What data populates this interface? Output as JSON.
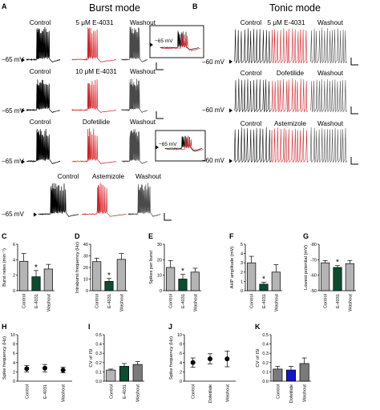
{
  "panels": {
    "A": {
      "letter": "A",
      "title": "Burst mode",
      "rows": [
        {
          "conditions": [
            "Control",
            "5 μM E-4031",
            "Washout"
          ],
          "vlabel": "−65 mV"
        },
        {
          "conditions": [
            "Control",
            "10 μM E-4031",
            "Washout"
          ],
          "vlabel": "−65 mV"
        },
        {
          "conditions": [
            "Control",
            "Dofetilide",
            "Washout"
          ],
          "vlabel": "−65 mV"
        },
        {
          "conditions": [
            "Control",
            "Astemizole",
            "Washout"
          ],
          "vlabel": "−65 mV"
        }
      ],
      "inset_labels": [
        "−65 mV",
        "−65 mV"
      ]
    },
    "B": {
      "letter": "B",
      "title": "Tonic mode",
      "rows": [
        {
          "conditions": [
            "Control",
            "5 μM E-4031",
            "Washout"
          ],
          "vlabel": "−60 mV"
        },
        {
          "conditions": [
            "Control",
            "Dofetilide",
            "Washout"
          ],
          "vlabel": "−60 mV"
        },
        {
          "conditions": [
            "Control",
            "Astemizole",
            "Washout"
          ],
          "vlabel": "−60 mV"
        }
      ]
    }
  },
  "colors": {
    "control": "#000000",
    "drug_red": "#d21e23",
    "washout": "#4a4a4a",
    "bar_gray": "#b4b4b4",
    "bar_green": "#0b4d2f",
    "bar_blue": "#1414d2",
    "bar_darkgray": "#7a7a7a"
  },
  "chart_data": [
    {
      "letter": "C",
      "type": "bar",
      "ylabel": "Burst rates (min⁻¹)",
      "ylim": [
        0,
        6
      ],
      "yticks": [
        0,
        2,
        4,
        6
      ],
      "categories": [
        "Control",
        "E-4031",
        "Washout"
      ],
      "values": [
        3.8,
        1.8,
        2.8
      ],
      "errors": [
        1.0,
        0.8,
        0.6
      ],
      "colors": [
        "#b4b4b4",
        "#0b4d2f",
        "#b4b4b4"
      ],
      "star": 1
    },
    {
      "letter": "D",
      "type": "bar",
      "ylabel": "Intraburst frequency (Hz)",
      "ylim": [
        0,
        40
      ],
      "yticks": [
        0,
        10,
        20,
        30,
        40
      ],
      "categories": [
        "Control",
        "E-4031",
        "Washout"
      ],
      "values": [
        25,
        8,
        27
      ],
      "errors": [
        3,
        2.5,
        5
      ],
      "colors": [
        "#b4b4b4",
        "#0b4d2f",
        "#b4b4b4"
      ],
      "star": 1
    },
    {
      "letter": "E",
      "type": "bar",
      "ylabel": "Spikes per burst",
      "ylim": [
        0,
        30
      ],
      "yticks": [
        0,
        10,
        20,
        30
      ],
      "categories": [
        "Control",
        "E-4031",
        "Washout"
      ],
      "values": [
        15,
        7.5,
        12
      ],
      "errors": [
        4.5,
        3,
        2.5
      ],
      "colors": [
        "#b4b4b4",
        "#0b4d2f",
        "#b4b4b4"
      ],
      "star": 1
    },
    {
      "letter": "F",
      "type": "bar",
      "ylabel": "AHP amplitude (mV)",
      "ylim": [
        0,
        5
      ],
      "yticks": [
        0,
        1,
        2,
        3,
        4,
        5
      ],
      "categories": [
        "Control",
        "E-4031",
        "Washout"
      ],
      "values": [
        3.0,
        0.7,
        2.0
      ],
      "errors": [
        0.7,
        0.2,
        0.8
      ],
      "colors": [
        "#b4b4b4",
        "#0b4d2f",
        "#b4b4b4"
      ],
      "star": 1
    },
    {
      "letter": "G",
      "type": "bar",
      "ylabel": "Lowest potential (mV)",
      "ylim": [
        -50,
        -80
      ],
      "yticks": [
        -50,
        -60,
        -70,
        -80
      ],
      "categories": [
        "Control",
        "E-4031",
        "Washout"
      ],
      "values": [
        -68,
        -65,
        -67.5
      ],
      "errors": [
        1.5,
        1.2,
        2.0
      ],
      "colors": [
        "#b4b4b4",
        "#0b4d2f",
        "#b4b4b4"
      ],
      "star": 1
    },
    {
      "letter": "H",
      "type": "scatter",
      "ylabel": "Spike frequency (Hz)",
      "ylim": [
        0,
        10
      ],
      "yticks": [
        0,
        2,
        4,
        6,
        8,
        10
      ],
      "categories": [
        "Control",
        "E-4031",
        "Washout"
      ],
      "values": [
        2.7,
        2.8,
        2.4
      ],
      "errors": [
        0.7,
        0.8,
        0.6
      ]
    },
    {
      "letter": "I",
      "type": "bar",
      "ylabel": "CV of ISI",
      "ylim": [
        0,
        0.5
      ],
      "yticks": [
        0.0,
        0.1,
        0.2,
        0.3,
        0.4,
        0.5
      ],
      "categories": [
        "Control",
        "E-4031",
        "Washout"
      ],
      "values": [
        0.12,
        0.16,
        0.18
      ],
      "errors": [
        0.01,
        0.03,
        0.03
      ],
      "colors": [
        "#b4b4b4",
        "#0b4d2f",
        "#7a7a7a"
      ]
    },
    {
      "letter": "J",
      "type": "scatter",
      "ylabel": "Spike frequency (Hz)",
      "ylim": [
        0,
        10
      ],
      "yticks": [
        0,
        2,
        4,
        6,
        8,
        10
      ],
      "categories": [
        "Control",
        "Dofetilide",
        "Washout"
      ],
      "values": [
        4.0,
        4.8,
        4.8
      ],
      "errors": [
        1.0,
        1.1,
        1.7
      ]
    },
    {
      "letter": "K",
      "type": "bar",
      "ylabel": "CV of ISI",
      "ylim": [
        0,
        0.5
      ],
      "yticks": [
        0.0,
        0.1,
        0.2,
        0.3,
        0.4,
        0.5
      ],
      "categories": [
        "Control",
        "Dofetilide",
        "Washout"
      ],
      "values": [
        0.13,
        0.12,
        0.19
      ],
      "errors": [
        0.03,
        0.04,
        0.06
      ],
      "colors": [
        "#7a7a7a",
        "#1414d2",
        "#7a7a7a"
      ]
    }
  ]
}
